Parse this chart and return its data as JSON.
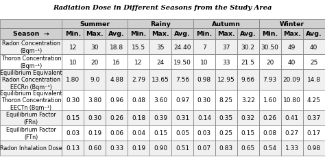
{
  "title": "Radiation Dose in Different Seasons from the Study Area",
  "season_headers": [
    "Summer",
    "Rainy",
    "Autumn",
    "Winter"
  ],
  "sub_headers": [
    "Min.",
    "Max.",
    "Avg.",
    "Min.",
    "Max.",
    "Avg.",
    "Min.",
    "Max.",
    "Avg.",
    "Min.",
    "Max.",
    "Avg."
  ],
  "row_labels": [
    "Radon Concentration\n(Bqm⁻¹)",
    "Thoron Concentration\n(Bqm⁻¹)",
    "Equilibrium Equivalent\nRadon Concentration\nEECRn (Bqm⁻¹)",
    "Equilibrium Equivalent\nThoron Concentration\nEECTn (Bqm⁻¹)",
    "Equilibrium Factor\n(FRn)",
    "Equilibrium Factor\n(FTn)",
    "Radon Inhalation Dose"
  ],
  "data_str_vals": [
    [
      "12",
      "30",
      "18.8",
      "15.5",
      "35",
      "24.40",
      "7",
      "37",
      "30.2",
      "30.50",
      "49",
      "40"
    ],
    [
      "10",
      "20",
      "16",
      "12",
      "24",
      "19.50",
      "10",
      "33",
      "21.5",
      "20",
      "40",
      "25"
    ],
    [
      "1.80",
      "9.0",
      "4.88",
      "2.79",
      "13.65",
      "7.56",
      "0.98",
      "12.95",
      "9.66",
      "7.93",
      "20.09",
      "14.8"
    ],
    [
      "0.30",
      "3.80",
      "0.96",
      "0.48",
      "3.60",
      "0.97",
      "0.30",
      "8.25",
      "3.22",
      "1.60",
      "10.80",
      "4.25"
    ],
    [
      "0.15",
      "0.30",
      "0.26",
      "0.18",
      "0.39",
      "0.31",
      "0.14",
      "0.35",
      "0.32",
      "0.26",
      "0.41",
      "0.37"
    ],
    [
      "0.03",
      "0.19",
      "0.06",
      "0.04",
      "0.15",
      "0.05",
      "0.03",
      "0.25",
      "0.15",
      "0.08",
      "0.27",
      "0.17"
    ],
    [
      "0.13",
      "0.60",
      "0.33",
      "0.19",
      "0.90",
      "0.51",
      "0.07",
      "0.83",
      "0.65",
      "0.54",
      "1.33",
      "0.98"
    ]
  ],
  "header_bg": "#d0d0d0",
  "alt_row_bg": "#f0f0f0",
  "white": "#ffffff",
  "border_color": "#777777",
  "label_font_size": 5.8,
  "data_font_size": 6.5,
  "header_font_size": 6.8,
  "title_font_size": 7.2
}
